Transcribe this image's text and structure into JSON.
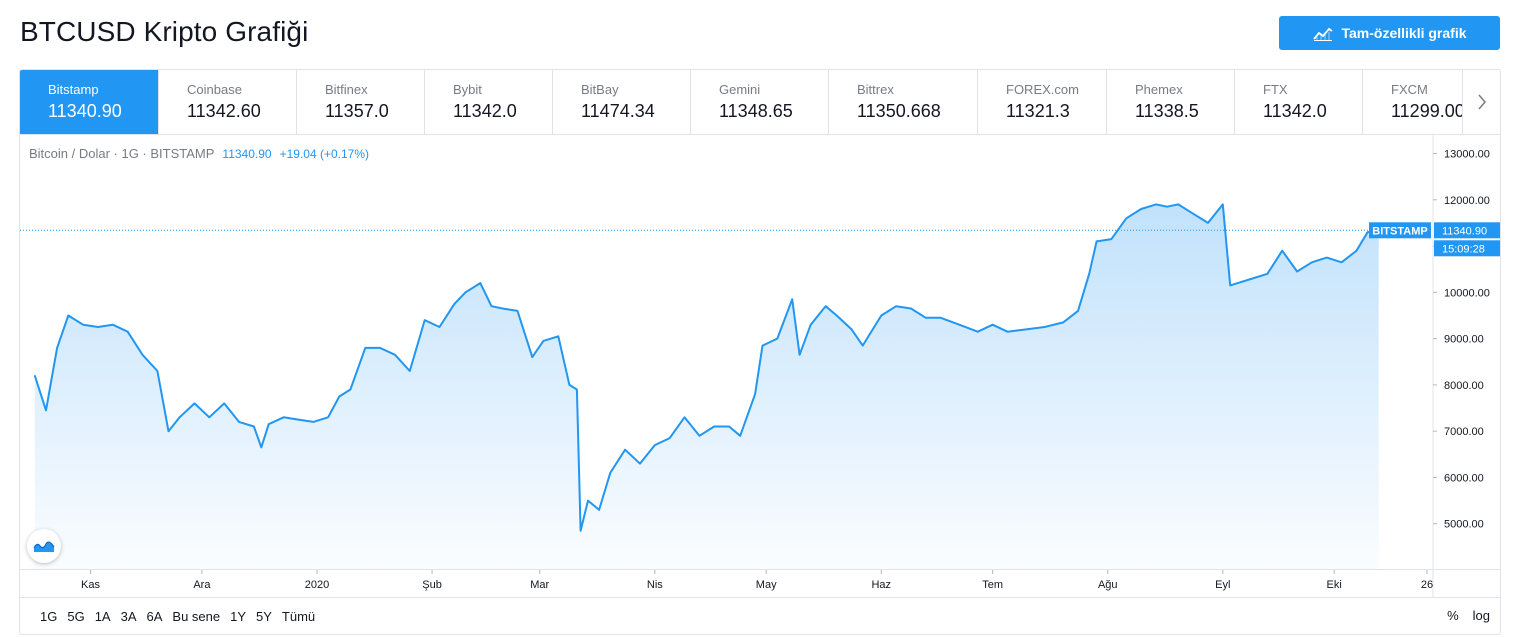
{
  "page": {
    "title": "BTCUSD Kripto Grafiği",
    "full_chart_button": "Tam-özellikli grafik"
  },
  "exchanges": [
    {
      "name": "Bitstamp",
      "price": "11340.90",
      "active": true
    },
    {
      "name": "Coinbase",
      "price": "11342.60"
    },
    {
      "name": "Bitfinex",
      "price": "11357.0"
    },
    {
      "name": "Bybit",
      "price": "11342.0"
    },
    {
      "name": "BitBay",
      "price": "11474.34"
    },
    {
      "name": "Gemini",
      "price": "11348.65"
    },
    {
      "name": "Bittrex",
      "price": "11350.668"
    },
    {
      "name": "FOREX.com",
      "price": "11321.3"
    },
    {
      "name": "Phemex",
      "price": "11338.5"
    },
    {
      "name": "FTX",
      "price": "11342.0"
    },
    {
      "name": "FXCM",
      "price": "11299.00"
    }
  ],
  "legend": {
    "symbol": "Bitcoin / Dolar · 1G · BITSTAMP",
    "last": "11340.90",
    "change": "+19.04 (+0.17%)"
  },
  "ranges": [
    "1G",
    "5G",
    "1A",
    "3A",
    "6A",
    "Bu sene",
    "1Y",
    "5Y",
    "Tümü"
  ],
  "scale_buttons": [
    "%",
    "log"
  ],
  "colors": {
    "accent": "#2196f3",
    "line": "#2196f3",
    "fill": "#2196f3"
  },
  "chart_data": {
    "type": "area",
    "symbol": "BTCUSD",
    "ylim": [
      4000,
      13400
    ],
    "y_ticks": [
      "13000.00",
      "12000.00",
      "11000.00",
      "10000.00",
      "9000.00",
      "8000.00",
      "7000.00",
      "6000.00",
      "5000.00"
    ],
    "x_ticks": [
      "Kas",
      "Ara",
      "2020",
      "Şub",
      "Mar",
      "Nis",
      "May",
      "Haz",
      "Tem",
      "Ağu",
      "Eyl",
      "Eki",
      "26"
    ],
    "last_price_label": "BITSTAMP",
    "last_price": "11340.90",
    "countdown": "15:09:28",
    "series": [
      {
        "x": [
          "2019-10-17",
          "2019-10-20",
          "2019-10-23",
          "2019-10-26",
          "2019-10-30",
          "2019-11-03",
          "2019-11-07",
          "2019-11-11",
          "2019-11-15",
          "2019-11-19",
          "2019-11-22",
          "2019-11-25",
          "2019-11-29",
          "2019-12-03",
          "2019-12-07",
          "2019-12-11",
          "2019-12-15",
          "2019-12-17",
          "2019-12-19",
          "2019-12-23",
          "2019-12-27",
          "2019-12-31",
          "2020-01-04",
          "2020-01-07",
          "2020-01-10",
          "2020-01-14",
          "2020-01-18",
          "2020-01-22",
          "2020-01-26",
          "2020-01-30",
          "2020-02-03",
          "2020-02-07",
          "2020-02-10",
          "2020-02-14",
          "2020-02-17",
          "2020-02-20",
          "2020-02-24",
          "2020-02-28",
          "2020-03-02",
          "2020-03-06",
          "2020-03-09",
          "2020-03-11",
          "2020-03-12",
          "2020-03-14",
          "2020-03-17",
          "2020-03-20",
          "2020-03-24",
          "2020-03-28",
          "2020-04-01",
          "2020-04-05",
          "2020-04-09",
          "2020-04-13",
          "2020-04-17",
          "2020-04-21",
          "2020-04-24",
          "2020-04-28",
          "2020-04-30",
          "2020-05-04",
          "2020-05-08",
          "2020-05-10",
          "2020-05-13",
          "2020-05-17",
          "2020-05-20",
          "2020-05-24",
          "2020-05-27",
          "2020-06-01",
          "2020-06-05",
          "2020-06-09",
          "2020-06-13",
          "2020-06-17",
          "2020-06-22",
          "2020-06-27",
          "2020-07-01",
          "2020-07-05",
          "2020-07-10",
          "2020-07-15",
          "2020-07-20",
          "2020-07-24",
          "2020-07-27",
          "2020-07-29",
          "2020-08-02",
          "2020-08-06",
          "2020-08-10",
          "2020-08-14",
          "2020-08-17",
          "2020-08-20",
          "2020-08-24",
          "2020-08-28",
          "2020-09-01",
          "2020-09-03",
          "2020-09-05",
          "2020-09-09",
          "2020-09-13",
          "2020-09-17",
          "2020-09-21",
          "2020-09-25",
          "2020-09-29",
          "2020-10-03",
          "2020-10-07",
          "2020-10-10",
          "2020-10-13"
        ],
        "y": [
          8200,
          7450,
          8800,
          9500,
          9300,
          9250,
          9300,
          9150,
          8650,
          8300,
          7000,
          7300,
          7600,
          7300,
          7600,
          7200,
          7100,
          6650,
          7150,
          7300,
          7250,
          7200,
          7300,
          7750,
          7900,
          8800,
          8800,
          8650,
          8300,
          9400,
          9250,
          9750,
          10000,
          10200,
          9700,
          9650,
          9600,
          8600,
          8950,
          9050,
          8000,
          7900,
          4850,
          5500,
          5300,
          6100,
          6600,
          6300,
          6700,
          6850,
          7300,
          6900,
          7100,
          7100,
          6900,
          7800,
          8850,
          9000,
          9850,
          8650,
          9300,
          9700,
          9500,
          9200,
          8850,
          9500,
          9700,
          9650,
          9450,
          9450,
          9300,
          9150,
          9300,
          9150,
          9200,
          9250,
          9350,
          9600,
          10400,
          11100,
          11150,
          11600,
          11800,
          11900,
          11850,
          11900,
          11700,
          11500,
          11900,
          10150,
          10200,
          10300,
          10400,
          10900,
          10450,
          10650,
          10750,
          10650,
          10900,
          11300,
          11340.9
        ]
      }
    ]
  }
}
